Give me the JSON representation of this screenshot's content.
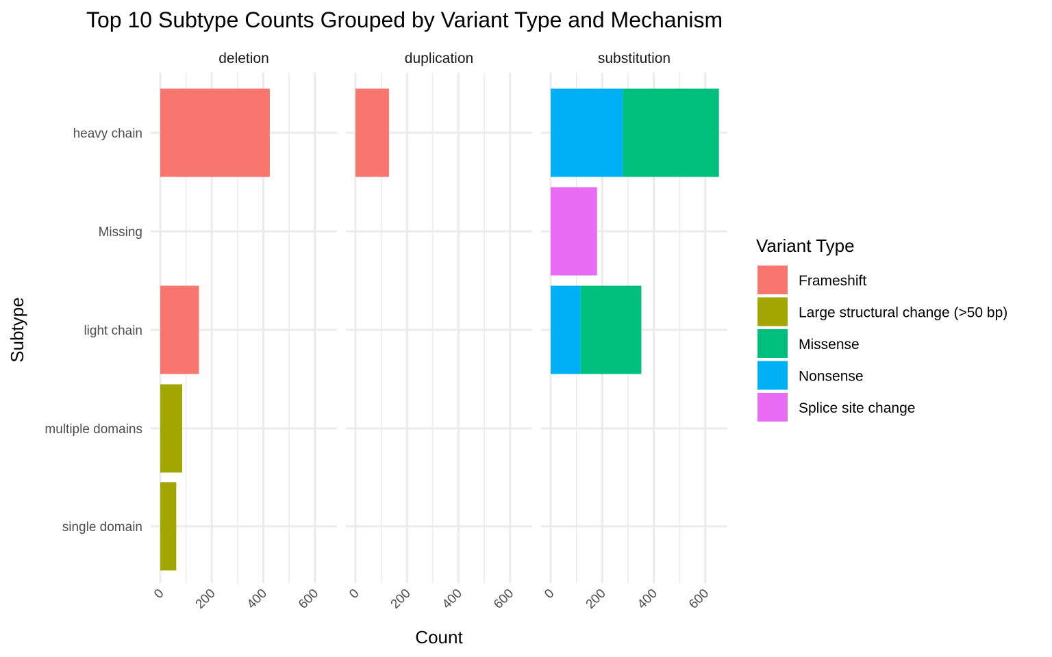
{
  "chart_data": {
    "type": "bar",
    "orientation": "horizontal",
    "stacked": true,
    "faceted": true,
    "title": "Top 10 Subtype Counts Grouped by Variant Type and Mechanism",
    "xlabel": "Count",
    "ylabel": "Subtype",
    "xlim": [
      0,
      680
    ],
    "x_ticks": [
      "0",
      "200",
      "400",
      "600"
    ],
    "x_tick_values": [
      0,
      200,
      400,
      600
    ],
    "grid": true,
    "facets": [
      "deletion",
      "duplication",
      "substitution"
    ],
    "categories": [
      "heavy chain",
      "Missing",
      "light chain",
      "multiple domains",
      "single domain"
    ],
    "legend": {
      "title": "Variant Type",
      "position": "right",
      "entries": [
        {
          "name": "Frameshift",
          "color": "#F8766D"
        },
        {
          "name": "Large structural change (>50 bp)",
          "color": "#A3A500"
        },
        {
          "name": "Missense",
          "color": "#00BF7D"
        },
        {
          "name": "Nonsense",
          "color": "#00B0F6"
        },
        {
          "name": "Splice site change",
          "color": "#E76BF3"
        }
      ]
    },
    "series": [
      {
        "name": "Frameshift",
        "color": "#F8766D",
        "values": {
          "deletion": [
            425,
            0,
            150,
            0,
            0
          ],
          "duplication": [
            130,
            0,
            0,
            0,
            0
          ],
          "substitution": [
            0,
            0,
            0,
            0,
            0
          ]
        }
      },
      {
        "name": "Large structural change (>50 bp)",
        "color": "#A3A500",
        "values": {
          "deletion": [
            0,
            0,
            0,
            85,
            62
          ],
          "duplication": [
            0,
            0,
            0,
            0,
            0
          ],
          "substitution": [
            0,
            0,
            0,
            0,
            0
          ]
        }
      },
      {
        "name": "Missense",
        "color": "#00BF7D",
        "values": {
          "deletion": [
            0,
            0,
            0,
            0,
            0
          ],
          "duplication": [
            0,
            0,
            0,
            0,
            0
          ],
          "substitution": [
            373,
            0,
            236,
            0,
            0
          ]
        }
      },
      {
        "name": "Nonsense",
        "color": "#00B0F6",
        "values": {
          "deletion": [
            0,
            0,
            0,
            0,
            0
          ],
          "duplication": [
            0,
            0,
            0,
            0,
            0
          ],
          "substitution": [
            280,
            0,
            116,
            0,
            0
          ]
        }
      },
      {
        "name": "Splice site change",
        "color": "#E76BF3",
        "values": {
          "deletion": [
            0,
            0,
            0,
            0,
            0
          ],
          "duplication": [
            0,
            0,
            0,
            0,
            0
          ],
          "substitution": [
            0,
            180,
            0,
            0,
            0
          ]
        }
      }
    ],
    "stack_order": [
      "Nonsense",
      "Missense",
      "Frameshift",
      "Large structural change (>50 bp)",
      "Splice site change"
    ]
  }
}
